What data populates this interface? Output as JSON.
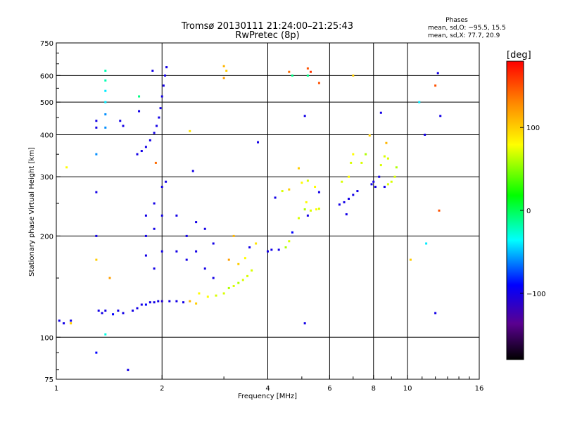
{
  "chart_data": {
    "type": "scatter",
    "title": "Tromsø 20130111 21:24:00–21:25:43",
    "subtitle": "RwPretec (8p)",
    "xlabel": "Frequency [MHz]",
    "ylabel": "Stationary phase Virtual Height [km]",
    "x_scale": "log2",
    "y_scale": "log",
    "xlim": [
      1,
      16
    ],
    "ylim": [
      75,
      750
    ],
    "x_ticks": [
      1,
      2,
      4,
      6,
      8,
      10,
      16
    ],
    "x_tick_labels": [
      "1",
      "2",
      "4",
      "6",
      "8",
      "10",
      "16"
    ],
    "y_ticks": [
      75,
      100,
      200,
      300,
      400,
      500,
      600,
      750
    ],
    "y_tick_labels": [
      "75",
      "100",
      "200",
      "300",
      "400",
      "500",
      "600",
      "750"
    ],
    "grid": true,
    "stats": {
      "heading": "Phases",
      "line_o": "mean, sd,O: −95.5, 15.5",
      "line_x": "mean, sd,X:  77.7, 20.9"
    },
    "colorbar": {
      "label": "[deg]",
      "tick_labels": [
        "100",
        "0",
        "−100"
      ],
      "ticks": [
        100,
        0,
        -100
      ],
      "range": [
        -180,
        180
      ],
      "colors": [
        "#000000",
        "#5a0090",
        "#0000ff",
        "#00ffff",
        "#00ff00",
        "#ffff00",
        "#ff8800",
        "#ff0000"
      ]
    },
    "series": [
      {
        "values": [
          {
            "x": 1.02,
            "y": 112,
            "phase": -100
          },
          {
            "x": 1.05,
            "y": 110,
            "phase": -100
          },
          {
            "x": 1.1,
            "y": 112,
            "phase": -100
          },
          {
            "x": 1.3,
            "y": 90,
            "phase": -90
          },
          {
            "x": 1.3,
            "y": 420,
            "phase": -100
          },
          {
            "x": 1.32,
            "y": 120,
            "phase": -100
          },
          {
            "x": 1.35,
            "y": 118,
            "phase": -100
          },
          {
            "x": 1.38,
            "y": 120,
            "phase": -100
          },
          {
            "x": 1.42,
            "y": 150,
            "phase": 120
          },
          {
            "x": 1.45,
            "y": 117,
            "phase": -90
          },
          {
            "x": 1.5,
            "y": 120,
            "phase": -100
          },
          {
            "x": 1.55,
            "y": 118,
            "phase": -100
          },
          {
            "x": 1.6,
            "y": 80,
            "phase": -100
          },
          {
            "x": 1.65,
            "y": 120,
            "phase": -100
          },
          {
            "x": 1.7,
            "y": 122,
            "phase": -100
          },
          {
            "x": 1.75,
            "y": 125,
            "phase": -100
          },
          {
            "x": 1.8,
            "y": 125,
            "phase": -90
          },
          {
            "x": 1.85,
            "y": 127,
            "phase": -100
          },
          {
            "x": 1.9,
            "y": 127,
            "phase": -100
          },
          {
            "x": 1.95,
            "y": 128,
            "phase": -100
          },
          {
            "x": 2.0,
            "y": 128,
            "phase": -110
          },
          {
            "x": 2.1,
            "y": 128,
            "phase": -100
          },
          {
            "x": 2.2,
            "y": 128,
            "phase": -100
          },
          {
            "x": 2.3,
            "y": 127,
            "phase": -100
          },
          {
            "x": 2.4,
            "y": 128,
            "phase": 110
          },
          {
            "x": 2.5,
            "y": 126,
            "phase": 100
          },
          {
            "x": 1.7,
            "y": 350,
            "phase": -100
          },
          {
            "x": 1.75,
            "y": 358,
            "phase": -100
          },
          {
            "x": 1.8,
            "y": 368,
            "phase": -100
          },
          {
            "x": 1.85,
            "y": 385,
            "phase": -100
          },
          {
            "x": 1.9,
            "y": 405,
            "phase": -100
          },
          {
            "x": 1.93,
            "y": 425,
            "phase": -100
          },
          {
            "x": 1.96,
            "y": 450,
            "phase": -100
          },
          {
            "x": 1.98,
            "y": 480,
            "phase": -100
          },
          {
            "x": 2.0,
            "y": 520,
            "phase": -100
          },
          {
            "x": 2.02,
            "y": 560,
            "phase": -100
          },
          {
            "x": 2.04,
            "y": 600,
            "phase": -100
          },
          {
            "x": 2.06,
            "y": 635,
            "phase": -100
          },
          {
            "x": 1.38,
            "y": 620,
            "phase": -20
          },
          {
            "x": 1.38,
            "y": 580,
            "phase": -20
          },
          {
            "x": 1.38,
            "y": 540,
            "phase": -40
          },
          {
            "x": 1.38,
            "y": 500,
            "phase": -40
          },
          {
            "x": 1.38,
            "y": 460,
            "phase": -60
          },
          {
            "x": 1.38,
            "y": 420,
            "phase": -60
          },
          {
            "x": 1.8,
            "y": 230,
            "phase": -100
          },
          {
            "x": 1.8,
            "y": 200,
            "phase": -100
          },
          {
            "x": 1.8,
            "y": 175,
            "phase": -100
          },
          {
            "x": 1.9,
            "y": 250,
            "phase": -100
          },
          {
            "x": 1.9,
            "y": 210,
            "phase": -100
          },
          {
            "x": 1.9,
            "y": 160,
            "phase": -100
          },
          {
            "x": 2.0,
            "y": 280,
            "phase": -100
          },
          {
            "x": 2.0,
            "y": 230,
            "phase": -100
          },
          {
            "x": 2.0,
            "y": 180,
            "phase": -100
          },
          {
            "x": 2.05,
            "y": 290,
            "phase": -100
          },
          {
            "x": 2.2,
            "y": 230,
            "phase": -100
          },
          {
            "x": 2.2,
            "y": 180,
            "phase": -100
          },
          {
            "x": 2.35,
            "y": 200,
            "phase": -100
          },
          {
            "x": 2.35,
            "y": 170,
            "phase": -100
          },
          {
            "x": 2.5,
            "y": 220,
            "phase": -100
          },
          {
            "x": 2.5,
            "y": 180,
            "phase": -100
          },
          {
            "x": 2.65,
            "y": 210,
            "phase": -100
          },
          {
            "x": 2.65,
            "y": 160,
            "phase": -100
          },
          {
            "x": 2.8,
            "y": 190,
            "phase": -100
          },
          {
            "x": 2.8,
            "y": 150,
            "phase": -100
          },
          {
            "x": 2.55,
            "y": 135,
            "phase": 80
          },
          {
            "x": 2.7,
            "y": 132,
            "phase": 80
          },
          {
            "x": 2.85,
            "y": 133,
            "phase": 70
          },
          {
            "x": 3.0,
            "y": 135,
            "phase": 70
          },
          {
            "x": 3.1,
            "y": 140,
            "phase": 60
          },
          {
            "x": 3.2,
            "y": 142,
            "phase": 70
          },
          {
            "x": 3.3,
            "y": 145,
            "phase": 60
          },
          {
            "x": 3.4,
            "y": 148,
            "phase": 70
          },
          {
            "x": 3.5,
            "y": 152,
            "phase": 70
          },
          {
            "x": 3.6,
            "y": 158,
            "phase": 70
          },
          {
            "x": 3.3,
            "y": 165,
            "phase": 100
          },
          {
            "x": 3.45,
            "y": 172,
            "phase": 80
          },
          {
            "x": 3.1,
            "y": 170,
            "phase": 120
          },
          {
            "x": 3.2,
            "y": 200,
            "phase": 110
          },
          {
            "x": 3.55,
            "y": 185,
            "phase": -100
          },
          {
            "x": 3.7,
            "y": 190,
            "phase": 90
          },
          {
            "x": 4.0,
            "y": 180,
            "phase": -100
          },
          {
            "x": 4.1,
            "y": 182,
            "phase": -100
          },
          {
            "x": 4.3,
            "y": 182,
            "phase": -100
          },
          {
            "x": 4.5,
            "y": 185,
            "phase": 60
          },
          {
            "x": 4.6,
            "y": 193,
            "phase": 70
          },
          {
            "x": 4.7,
            "y": 205,
            "phase": -90
          },
          {
            "x": 4.9,
            "y": 226,
            "phase": 70
          },
          {
            "x": 5.1,
            "y": 240,
            "phase": 60
          },
          {
            "x": 5.15,
            "y": 252,
            "phase": 80
          },
          {
            "x": 5.2,
            "y": 230,
            "phase": -100
          },
          {
            "x": 5.3,
            "y": 238,
            "phase": 70
          },
          {
            "x": 5.5,
            "y": 240,
            "phase": 80
          },
          {
            "x": 5.6,
            "y": 241,
            "phase": 70
          },
          {
            "x": 5.0,
            "y": 288,
            "phase": 80
          },
          {
            "x": 5.2,
            "y": 292,
            "phase": 70
          },
          {
            "x": 5.45,
            "y": 280,
            "phase": 80
          },
          {
            "x": 5.6,
            "y": 270,
            "phase": -100
          },
          {
            "x": 4.2,
            "y": 260,
            "phase": -100
          },
          {
            "x": 4.4,
            "y": 272,
            "phase": 70
          },
          {
            "x": 4.6,
            "y": 275,
            "phase": 100
          },
          {
            "x": 6.4,
            "y": 248,
            "phase": -100
          },
          {
            "x": 6.6,
            "y": 252,
            "phase": -100
          },
          {
            "x": 6.8,
            "y": 258,
            "phase": -100
          },
          {
            "x": 7.0,
            "y": 265,
            "phase": -100
          },
          {
            "x": 7.2,
            "y": 272,
            "phase": -100
          },
          {
            "x": 6.7,
            "y": 232,
            "phase": -100
          },
          {
            "x": 6.5,
            "y": 290,
            "phase": 70
          },
          {
            "x": 6.8,
            "y": 300,
            "phase": 80
          },
          {
            "x": 6.9,
            "y": 330,
            "phase": 70
          },
          {
            "x": 7.0,
            "y": 350,
            "phase": 80
          },
          {
            "x": 7.4,
            "y": 330,
            "phase": 70
          },
          {
            "x": 7.6,
            "y": 350,
            "phase": 60
          },
          {
            "x": 7.9,
            "y": 285,
            "phase": -100
          },
          {
            "x": 8.0,
            "y": 290,
            "phase": -100
          },
          {
            "x": 8.1,
            "y": 280,
            "phase": -100
          },
          {
            "x": 8.3,
            "y": 300,
            "phase": -100
          },
          {
            "x": 8.6,
            "y": 280,
            "phase": -100
          },
          {
            "x": 8.8,
            "y": 285,
            "phase": 70
          },
          {
            "x": 9.0,
            "y": 290,
            "phase": 70
          },
          {
            "x": 9.2,
            "y": 300,
            "phase": 70
          },
          {
            "x": 9.3,
            "y": 320,
            "phase": 60
          },
          {
            "x": 8.4,
            "y": 325,
            "phase": 70
          },
          {
            "x": 8.6,
            "y": 345,
            "phase": 70
          },
          {
            "x": 8.8,
            "y": 340,
            "phase": 70
          },
          {
            "x": 7.8,
            "y": 398,
            "phase": 100
          },
          {
            "x": 8.7,
            "y": 378,
            "phase": 110
          },
          {
            "x": 8.4,
            "y": 465,
            "phase": -100
          },
          {
            "x": 10.8,
            "y": 500,
            "phase": -40
          },
          {
            "x": 11.2,
            "y": 400,
            "phase": -100
          },
          {
            "x": 12.2,
            "y": 610,
            "phase": -100
          },
          {
            "x": 12.0,
            "y": 560,
            "phase": 150
          },
          {
            "x": 12.4,
            "y": 455,
            "phase": -100
          },
          {
            "x": 12.3,
            "y": 238,
            "phase": 150
          },
          {
            "x": 11.3,
            "y": 190,
            "phase": -40
          },
          {
            "x": 12.0,
            "y": 118,
            "phase": -100
          },
          {
            "x": 10.2,
            "y": 170,
            "phase": 100
          },
          {
            "x": 5.1,
            "y": 110,
            "phase": -100
          },
          {
            "x": 5.1,
            "y": 455,
            "phase": -100
          },
          {
            "x": 5.2,
            "y": 600,
            "phase": -10
          },
          {
            "x": 5.3,
            "y": 615,
            "phase": 160
          },
          {
            "x": 5.6,
            "y": 570,
            "phase": 150
          },
          {
            "x": 5.2,
            "y": 630,
            "phase": 150
          },
          {
            "x": 3.0,
            "y": 640,
            "phase": 110
          },
          {
            "x": 3.05,
            "y": 620,
            "phase": 100
          },
          {
            "x": 3.0,
            "y": 590,
            "phase": 120
          },
          {
            "x": 4.6,
            "y": 615,
            "phase": 140
          },
          {
            "x": 7.0,
            "y": 600,
            "phase": 100
          },
          {
            "x": 1.88,
            "y": 620,
            "phase": -100
          },
          {
            "x": 1.72,
            "y": 520,
            "phase": -10
          },
          {
            "x": 1.72,
            "y": 470,
            "phase": -100
          },
          {
            "x": 1.55,
            "y": 425,
            "phase": -100
          },
          {
            "x": 1.52,
            "y": 440,
            "phase": -100
          },
          {
            "x": 1.3,
            "y": 440,
            "phase": -100
          },
          {
            "x": 1.3,
            "y": 350,
            "phase": -60
          },
          {
            "x": 1.3,
            "y": 270,
            "phase": -100
          },
          {
            "x": 1.3,
            "y": 200,
            "phase": -100
          },
          {
            "x": 1.3,
            "y": 170,
            "phase": 100
          },
          {
            "x": 1.07,
            "y": 320,
            "phase": 80
          },
          {
            "x": 1.1,
            "y": 110,
            "phase": 100
          },
          {
            "x": 1.38,
            "y": 102,
            "phase": -30
          },
          {
            "x": 1.92,
            "y": 330,
            "phase": 140
          },
          {
            "x": 2.4,
            "y": 410,
            "phase": 90
          },
          {
            "x": 2.45,
            "y": 312,
            "phase": -100
          },
          {
            "x": 3.75,
            "y": 380,
            "phase": -100
          },
          {
            "x": 4.7,
            "y": 600,
            "phase": -10
          },
          {
            "x": 4.9,
            "y": 318,
            "phase": 100
          }
        ]
      }
    ]
  }
}
